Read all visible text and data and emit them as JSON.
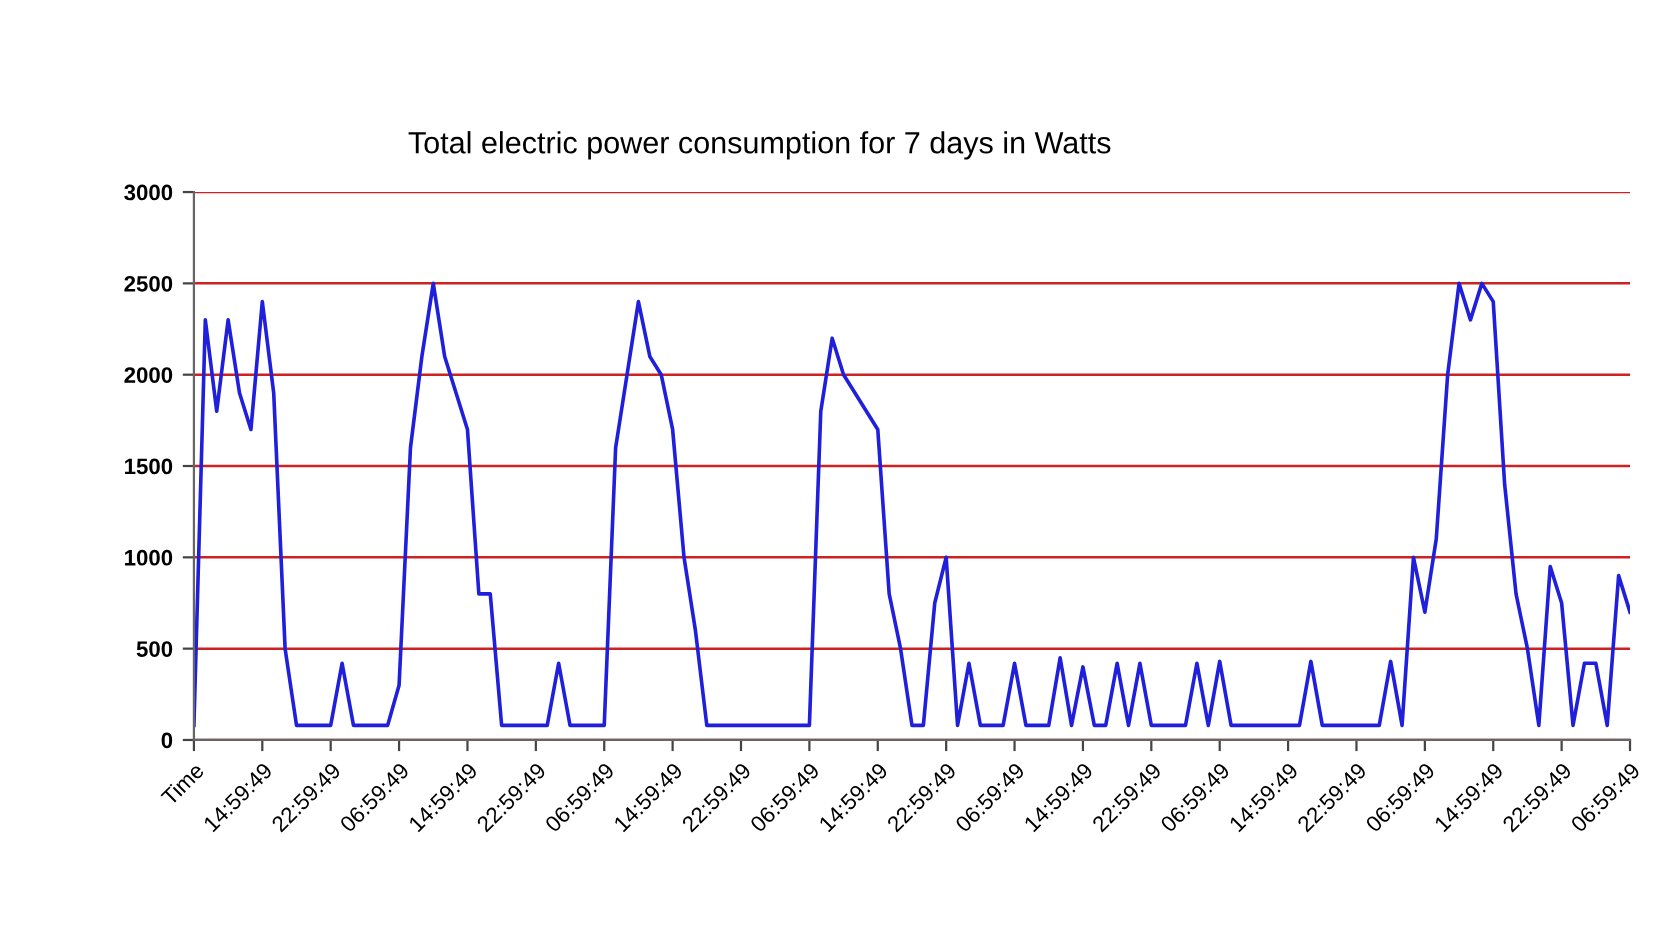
{
  "chart_data": {
    "type": "line",
    "title": "Total electric power consumption for 7 days in Watts",
    "categories": [
      "Time",
      null,
      null,
      null,
      null,
      null,
      "14:59:49",
      null,
      null,
      null,
      null,
      null,
      "22:59:49",
      null,
      null,
      null,
      null,
      null,
      "06:59:49",
      null,
      null,
      null,
      null,
      null,
      "14:59:49",
      null,
      null,
      null,
      null,
      null,
      "22:59:49",
      null,
      null,
      null,
      null,
      null,
      "06:59:49",
      null,
      null,
      null,
      null,
      null,
      "14:59:49",
      null,
      null,
      null,
      null,
      null,
      "22:59:49",
      null,
      null,
      null,
      null,
      null,
      "06:59:49",
      null,
      null,
      null,
      null,
      null,
      "14:59:49",
      null,
      null,
      null,
      null,
      null,
      "22:59:49",
      null,
      null,
      null,
      null,
      null,
      "06:59:49",
      null,
      null,
      null,
      null,
      null,
      "14:59:49",
      null,
      null,
      null,
      null,
      null,
      "22:59:49",
      null,
      null,
      null,
      null,
      null,
      "06:59:49",
      null,
      null,
      null,
      null,
      null,
      "14:59:49",
      null,
      null,
      null,
      null,
      null,
      "22:59:49",
      null,
      null,
      null,
      null,
      null,
      "06:59:49",
      null,
      null,
      null,
      null,
      null,
      "14:59:49",
      null,
      null,
      null,
      null,
      null,
      "22:59:49",
      null,
      null,
      null,
      null,
      null,
      "06:59:49"
    ],
    "series": [
      {
        "color": "#1f1fdc",
        "values": [
          80,
          2300,
          1800,
          2300,
          1900,
          1700,
          2400,
          1900,
          500,
          80,
          80,
          80,
          80,
          420,
          80,
          80,
          80,
          80,
          300,
          1600,
          2100,
          2500,
          2100,
          1900,
          1700,
          800,
          800,
          80,
          80,
          80,
          80,
          80,
          420,
          80,
          80,
          80,
          80,
          1600,
          2000,
          2400,
          2100,
          2000,
          1700,
          1000,
          600,
          80,
          80,
          80,
          80,
          80,
          80,
          80,
          80,
          80,
          80,
          1800,
          2200,
          2000,
          1900,
          1800,
          1700,
          800,
          500,
          80,
          80,
          750,
          1000,
          80,
          420,
          80,
          80,
          80,
          420,
          80,
          80,
          80,
          450,
          80,
          400,
          80,
          80,
          420,
          80,
          420,
          80,
          80,
          80,
          80,
          420,
          80,
          430,
          80,
          80,
          80,
          80,
          80,
          80,
          80,
          430,
          80,
          80,
          80,
          80,
          80,
          80,
          430,
          80,
          1000,
          700,
          1100,
          2000,
          2500,
          2300,
          2500,
          2400,
          1400,
          800,
          500,
          80,
          950,
          750,
          80,
          420,
          420,
          80,
          900,
          700
        ]
      }
    ],
    "ylim": [
      0,
      3000
    ],
    "yticks": [
      0,
      500,
      1000,
      1500,
      2000,
      2500,
      3000
    ],
    "grid": "y",
    "line_style": "solid"
  }
}
